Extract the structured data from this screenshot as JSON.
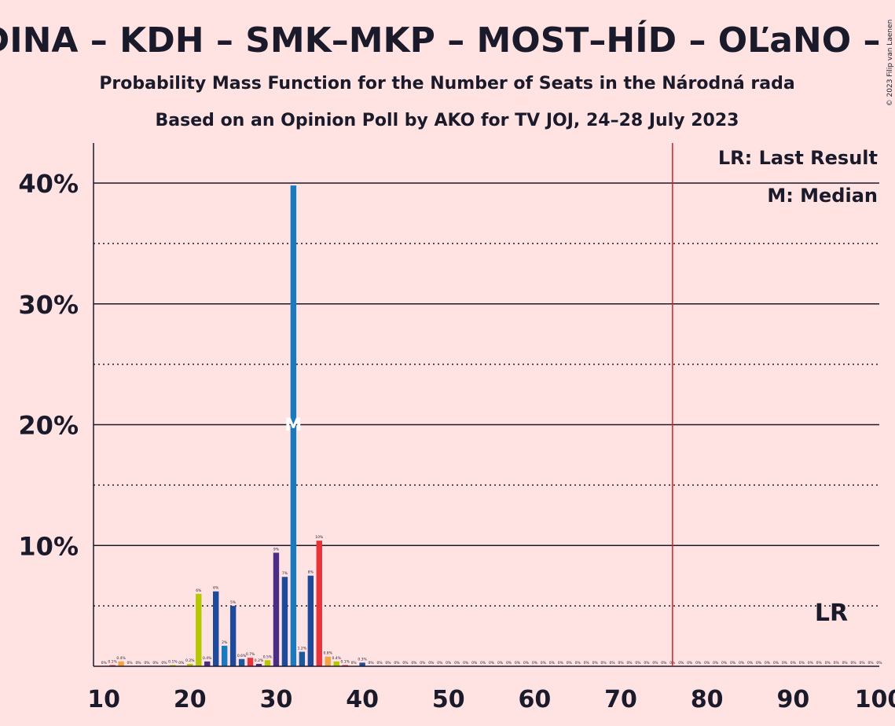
{
  "chart_data": {
    "type": "bar",
    "title": "ODINA – KDH – SMK–MKP – MOST–HÍD – OĽaNO – PS",
    "subtitle": "Probability Mass Function for the Number of Seats in the Národná rada",
    "subtitle2": "Based on an Opinion Poll by AKO for TV JOJ, 24–28 July 2023",
    "copyright": "© 2023 Filip van Laenen",
    "xlim": [
      10,
      100
    ],
    "ylim": [
      0,
      43
    ],
    "x_ticks": [
      10,
      20,
      30,
      40,
      50,
      60,
      70,
      80,
      90,
      100
    ],
    "x_tick_labels": [
      "10",
      "20",
      "30",
      "40",
      "50",
      "60",
      "70",
      "80",
      "90",
      "100"
    ],
    "y_major_ticks": [
      10,
      20,
      30,
      40
    ],
    "y_tick_labels": [
      "10%",
      "20%",
      "30%",
      "40%"
    ],
    "y_minor_gridlines": [
      5,
      15,
      25,
      35
    ],
    "legend": [
      "LR: Last Result",
      "M: Median"
    ],
    "last_result": {
      "x": 76,
      "label": "LR"
    },
    "median": {
      "x": 32,
      "label": "M"
    },
    "bars": [
      {
        "x": 10,
        "value": 0.0,
        "label": "0%",
        "color": "#f4a340"
      },
      {
        "x": 11,
        "value": 0.1,
        "label": "0.1%",
        "color": "#e8333a"
      },
      {
        "x": 12,
        "value": 0.4,
        "label": "0.4%",
        "color": "#f4a340"
      },
      {
        "x": 13,
        "value": 0.0,
        "label": "0%",
        "color": "#e8333a"
      },
      {
        "x": 14,
        "value": 0.0,
        "label": "0%",
        "color": "#f4a340"
      },
      {
        "x": 15,
        "value": 0.0,
        "label": "0%",
        "color": "#e8333a"
      },
      {
        "x": 16,
        "value": 0.0,
        "label": "0%",
        "color": "#f4a340"
      },
      {
        "x": 17,
        "value": 0.0,
        "label": "0%",
        "color": "#e8333a"
      },
      {
        "x": 18,
        "value": 0.1,
        "label": "0.1%",
        "color": "#b5c800"
      },
      {
        "x": 19,
        "value": 0.0,
        "label": "0%",
        "color": "#e8333a"
      },
      {
        "x": 20,
        "value": 0.2,
        "label": "0.2%",
        "color": "#b5c800"
      },
      {
        "x": 21,
        "value": 6.0,
        "label": "6%",
        "color": "#b5c800"
      },
      {
        "x": 22,
        "value": 0.4,
        "label": "0.4%",
        "color": "#4b2e83"
      },
      {
        "x": 23,
        "value": 6.2,
        "label": "6%",
        "color": "#1e4a9c"
      },
      {
        "x": 24,
        "value": 1.7,
        "label": "2%",
        "color": "#1a7ac0"
      },
      {
        "x": 25,
        "value": 5.0,
        "label": "5%",
        "color": "#1e4a9c"
      },
      {
        "x": 26,
        "value": 0.6,
        "label": "0.6%",
        "color": "#1a5a9c"
      },
      {
        "x": 27,
        "value": 0.7,
        "label": "0.7%",
        "color": "#e8333a"
      },
      {
        "x": 28,
        "value": 0.2,
        "label": "0.2%",
        "color": "#4b2e83"
      },
      {
        "x": 29,
        "value": 0.5,
        "label": "0.5%",
        "color": "#b5c800"
      },
      {
        "x": 30,
        "value": 9.4,
        "label": "9%",
        "color": "#4b2e83"
      },
      {
        "x": 31,
        "value": 7.4,
        "label": "7%",
        "color": "#1e4a9c"
      },
      {
        "x": 32,
        "value": 39.8,
        "label": "",
        "color": "#1a7ac0"
      },
      {
        "x": 33,
        "value": 1.2,
        "label": "1.2%",
        "color": "#1a5a9c"
      },
      {
        "x": 34,
        "value": 7.5,
        "label": "8%",
        "color": "#1e4a9c"
      },
      {
        "x": 35,
        "value": 10.4,
        "label": "10%",
        "color": "#e8333a"
      },
      {
        "x": 36,
        "value": 0.8,
        "label": "0.8%",
        "color": "#f4a340"
      },
      {
        "x": 37,
        "value": 0.4,
        "label": "0.4%",
        "color": "#b5c800"
      },
      {
        "x": 38,
        "value": 0.1,
        "label": "0.1%",
        "color": "#e8333a"
      },
      {
        "x": 39,
        "value": 0.0,
        "label": "0%",
        "color": "#e8333a"
      },
      {
        "x": 40,
        "value": 0.3,
        "label": "0.3%",
        "color": "#1e4a9c"
      },
      {
        "x": 41,
        "value": 0.0,
        "label": "0%",
        "color": "#1e4a9c"
      },
      {
        "x": 42,
        "value": 0.0,
        "label": "0%",
        "color": "#1e4a9c"
      },
      {
        "x": 43,
        "value": 0.0,
        "label": "0%",
        "color": "#1e4a9c"
      },
      {
        "x": 44,
        "value": 0.0,
        "label": "0%",
        "color": "#1e4a9c"
      },
      {
        "x": 45,
        "value": 0.0,
        "label": "0%",
        "color": "#1e4a9c"
      },
      {
        "x": 46,
        "value": 0.0,
        "label": "0%",
        "color": "#1e4a9c"
      },
      {
        "x": 47,
        "value": 0.0,
        "label": "0%",
        "color": "#1e4a9c"
      },
      {
        "x": 48,
        "value": 0.0,
        "label": "0%",
        "color": "#1e4a9c"
      },
      {
        "x": 49,
        "value": 0.0,
        "label": "0%",
        "color": "#1e4a9c"
      },
      {
        "x": 50,
        "value": 0.0,
        "label": "0%",
        "color": "#1e4a9c"
      },
      {
        "x": 51,
        "value": 0.0,
        "label": "0%",
        "color": "#1e4a9c"
      },
      {
        "x": 52,
        "value": 0.0,
        "label": "0%",
        "color": "#1e4a9c"
      },
      {
        "x": 53,
        "value": 0.0,
        "label": "0%",
        "color": "#1e4a9c"
      },
      {
        "x": 54,
        "value": 0.0,
        "label": "0%",
        "color": "#1e4a9c"
      },
      {
        "x": 55,
        "value": 0.0,
        "label": "0%",
        "color": "#1e4a9c"
      },
      {
        "x": 56,
        "value": 0.0,
        "label": "0%",
        "color": "#1e4a9c"
      },
      {
        "x": 57,
        "value": 0.0,
        "label": "0%",
        "color": "#1e4a9c"
      },
      {
        "x": 58,
        "value": 0.0,
        "label": "0%",
        "color": "#1e4a9c"
      },
      {
        "x": 59,
        "value": 0.0,
        "label": "0%",
        "color": "#1e4a9c"
      },
      {
        "x": 60,
        "value": 0.0,
        "label": "0%",
        "color": "#1e4a9c"
      },
      {
        "x": 61,
        "value": 0.0,
        "label": "0%",
        "color": "#1e4a9c"
      },
      {
        "x": 62,
        "value": 0.0,
        "label": "0%",
        "color": "#1e4a9c"
      },
      {
        "x": 63,
        "value": 0.0,
        "label": "0%",
        "color": "#1e4a9c"
      },
      {
        "x": 64,
        "value": 0.0,
        "label": "0%",
        "color": "#1e4a9c"
      },
      {
        "x": 65,
        "value": 0.0,
        "label": "0%",
        "color": "#1e4a9c"
      },
      {
        "x": 66,
        "value": 0.0,
        "label": "0%",
        "color": "#1e4a9c"
      },
      {
        "x": 67,
        "value": 0.0,
        "label": "0%",
        "color": "#1e4a9c"
      },
      {
        "x": 68,
        "value": 0.0,
        "label": "0%",
        "color": "#1e4a9c"
      },
      {
        "x": 69,
        "value": 0.0,
        "label": "0%",
        "color": "#1e4a9c"
      },
      {
        "x": 70,
        "value": 0.0,
        "label": "0%",
        "color": "#1e4a9c"
      },
      {
        "x": 71,
        "value": 0.0,
        "label": "0%",
        "color": "#1e4a9c"
      },
      {
        "x": 72,
        "value": 0.0,
        "label": "0%",
        "color": "#1e4a9c"
      },
      {
        "x": 73,
        "value": 0.0,
        "label": "0%",
        "color": "#1e4a9c"
      },
      {
        "x": 74,
        "value": 0.0,
        "label": "0%",
        "color": "#1e4a9c"
      },
      {
        "x": 75,
        "value": 0.0,
        "label": "0%",
        "color": "#1e4a9c"
      },
      {
        "x": 76,
        "value": 0.0,
        "label": "0%",
        "color": "#1e4a9c"
      },
      {
        "x": 77,
        "value": 0.0,
        "label": "0%",
        "color": "#1e4a9c"
      },
      {
        "x": 78,
        "value": 0.0,
        "label": "0%",
        "color": "#1e4a9c"
      },
      {
        "x": 79,
        "value": 0.0,
        "label": "0%",
        "color": "#1e4a9c"
      },
      {
        "x": 80,
        "value": 0.0,
        "label": "0%",
        "color": "#1e4a9c"
      },
      {
        "x": 81,
        "value": 0.0,
        "label": "0%",
        "color": "#1e4a9c"
      },
      {
        "x": 82,
        "value": 0.0,
        "label": "0%",
        "color": "#1e4a9c"
      },
      {
        "x": 83,
        "value": 0.0,
        "label": "0%",
        "color": "#1e4a9c"
      },
      {
        "x": 84,
        "value": 0.0,
        "label": "0%",
        "color": "#1e4a9c"
      },
      {
        "x": 85,
        "value": 0.0,
        "label": "0%",
        "color": "#1e4a9c"
      },
      {
        "x": 86,
        "value": 0.0,
        "label": "0%",
        "color": "#1e4a9c"
      },
      {
        "x": 87,
        "value": 0.0,
        "label": "0%",
        "color": "#1e4a9c"
      },
      {
        "x": 88,
        "value": 0.0,
        "label": "0%",
        "color": "#1e4a9c"
      },
      {
        "x": 89,
        "value": 0.0,
        "label": "0%",
        "color": "#1e4a9c"
      },
      {
        "x": 90,
        "value": 0.0,
        "label": "0%",
        "color": "#1e4a9c"
      },
      {
        "x": 91,
        "value": 0.0,
        "label": "0%",
        "color": "#1e4a9c"
      },
      {
        "x": 92,
        "value": 0.0,
        "label": "0%",
        "color": "#1e4a9c"
      },
      {
        "x": 93,
        "value": 0.0,
        "label": "0%",
        "color": "#1e4a9c"
      },
      {
        "x": 94,
        "value": 0.0,
        "label": "0%",
        "color": "#1e4a9c"
      },
      {
        "x": 95,
        "value": 0.0,
        "label": "0%",
        "color": "#1e4a9c"
      },
      {
        "x": 96,
        "value": 0.0,
        "label": "0%",
        "color": "#1e4a9c"
      },
      {
        "x": 97,
        "value": 0.0,
        "label": "0%",
        "color": "#1e4a9c"
      },
      {
        "x": 98,
        "value": 0.0,
        "label": "0%",
        "color": "#1e4a9c"
      },
      {
        "x": 99,
        "value": 0.0,
        "label": "0%",
        "color": "#1e4a9c"
      },
      {
        "x": 100,
        "value": 0.0,
        "label": "0%",
        "color": "#1e4a9c"
      }
    ],
    "colors": {
      "background": "#FFE3E3",
      "text": "#1a1a2a",
      "last_result_line": "#d42020"
    }
  }
}
